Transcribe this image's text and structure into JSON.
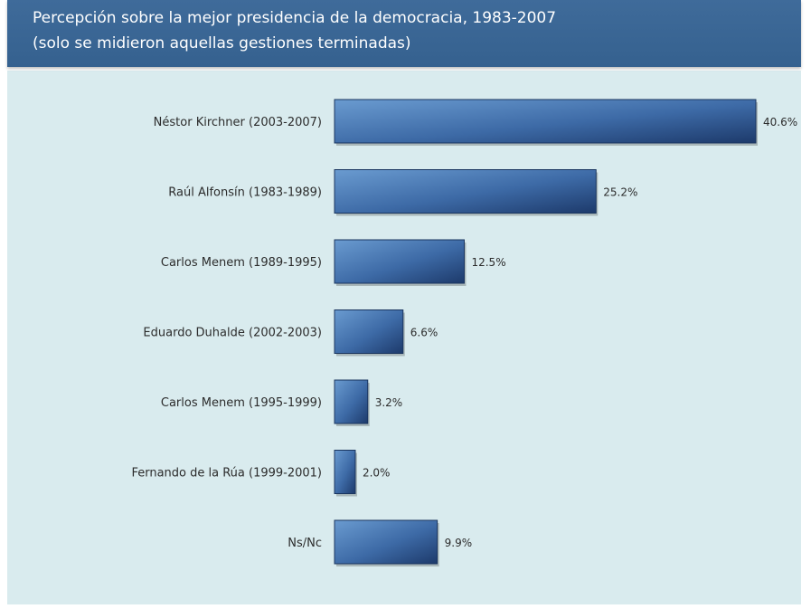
{
  "header": {
    "title_line_1": "Percepción sobre la mejor presidencia de la democracia, 1983-2007",
    "title_line_2": "(solo se midieron aquellas gestiones terminadas)"
  },
  "colors": {
    "banner": "#3a6795",
    "plot_background": "#d9ebee",
    "bar_light": "#5b8fc7",
    "bar_dark": "#1f3f73"
  },
  "chart_data": {
    "type": "bar",
    "orientation": "horizontal",
    "title": "Percepción sobre la mejor presidencia de la democracia, 1983-2007",
    "subtitle": "(solo se midieron aquellas gestiones terminadas)",
    "categories": [
      "Néstor Kirchner (2003-2007)",
      "Raúl Alfonsín (1983-1989)",
      "Carlos Menem (1989-1995)",
      "Eduardo Duhalde (2002-2003)",
      "Carlos Menem (1995-1999)",
      "Fernando de la Rúa (1999-2001)",
      "Ns/Nc"
    ],
    "values": [
      40.6,
      25.2,
      12.5,
      6.6,
      3.2,
      2.0,
      9.9
    ],
    "value_labels": [
      "40.6%",
      "25.2%",
      "12.5%",
      "6.6%",
      "3.2%",
      "2.0%",
      "9.9%"
    ],
    "unit": "%",
    "xlim": [
      0,
      40.6
    ],
    "grid": false,
    "legend": "none"
  }
}
